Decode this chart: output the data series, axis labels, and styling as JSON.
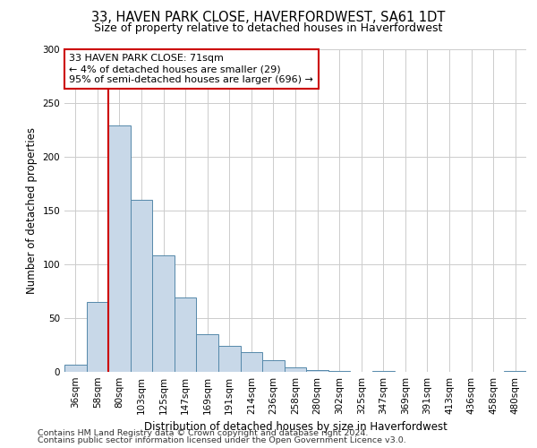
{
  "title1": "33, HAVEN PARK CLOSE, HAVERFORDWEST, SA61 1DT",
  "title2": "Size of property relative to detached houses in Haverfordwest",
  "xlabel": "Distribution of detached houses by size in Haverfordwest",
  "ylabel": "Number of detached properties",
  "footnote1": "Contains HM Land Registry data © Crown copyright and database right 2024.",
  "footnote2": "Contains public sector information licensed under the Open Government Licence v3.0.",
  "categories": [
    "36sqm",
    "58sqm",
    "80sqm",
    "103sqm",
    "125sqm",
    "147sqm",
    "169sqm",
    "191sqm",
    "214sqm",
    "236sqm",
    "258sqm",
    "280sqm",
    "302sqm",
    "325sqm",
    "347sqm",
    "369sqm",
    "391sqm",
    "413sqm",
    "436sqm",
    "458sqm",
    "480sqm"
  ],
  "values": [
    7,
    65,
    229,
    160,
    108,
    69,
    35,
    24,
    18,
    11,
    4,
    2,
    1,
    0,
    1,
    0,
    0,
    0,
    0,
    0,
    1
  ],
  "bar_color": "#c8d8e8",
  "bar_edge_color": "#5588aa",
  "grid_color": "#cccccc",
  "annotation_box_color": "#cc0000",
  "annotation_line_color": "#cc0000",
  "annotation_text_line1": "33 HAVEN PARK CLOSE: 71sqm",
  "annotation_text_line2": "← 4% of detached houses are smaller (29)",
  "annotation_text_line3": "95% of semi-detached houses are larger (696) →",
  "ylim": [
    0,
    300
  ],
  "yticks": [
    0,
    50,
    100,
    150,
    200,
    250,
    300
  ],
  "bg_color": "#ffffff",
  "title1_fontsize": 10.5,
  "title2_fontsize": 9,
  "axis_label_fontsize": 8.5,
  "tick_fontsize": 7.5,
  "annotation_fontsize": 8,
  "footnote_fontsize": 6.8
}
